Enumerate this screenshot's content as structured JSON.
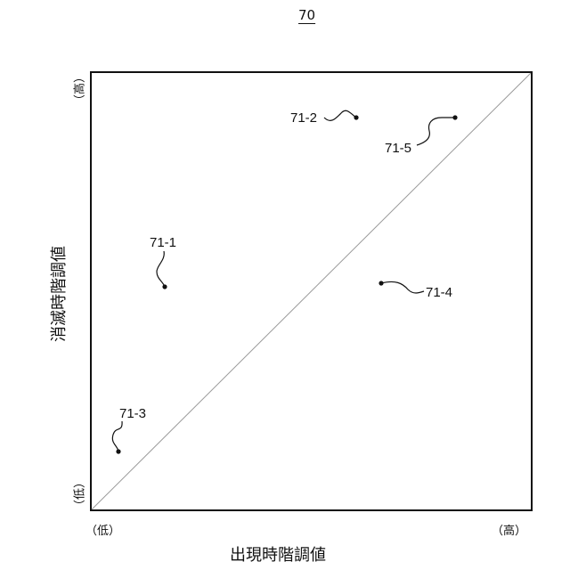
{
  "figure_number": "70",
  "x_axis": {
    "title": "出現時階調値",
    "low": "（低）",
    "high": "（高）"
  },
  "y_axis": {
    "title": "消滅時階調値",
    "low": "（低）",
    "high": "（高）"
  },
  "points": [
    {
      "label": "71-1"
    },
    {
      "label": "71-2"
    },
    {
      "label": "71-3"
    },
    {
      "label": "71-4"
    },
    {
      "label": "71-5"
    }
  ]
}
